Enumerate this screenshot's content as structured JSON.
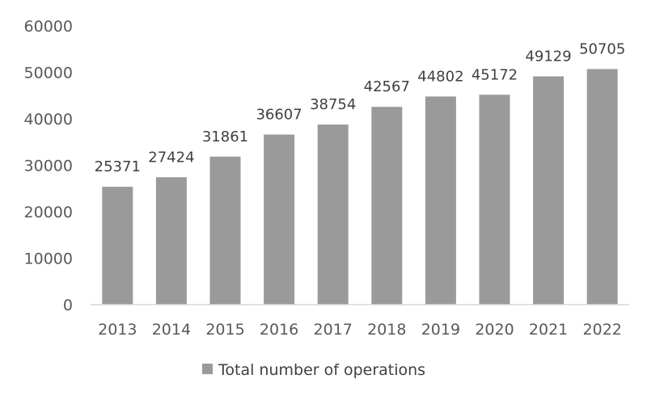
{
  "chart_data": {
    "type": "bar",
    "categories": [
      "2013",
      "2014",
      "2015",
      "2016",
      "2017",
      "2018",
      "2019",
      "2020",
      "2021",
      "2022"
    ],
    "series": [
      {
        "name": "Total number of operations",
        "values": [
          25371,
          27424,
          31861,
          36607,
          38754,
          42567,
          44802,
          45172,
          49129,
          50705
        ]
      }
    ],
    "ylim": [
      0,
      60000
    ],
    "yticks": [
      0,
      10000,
      20000,
      30000,
      40000,
      50000,
      60000
    ],
    "grid": false,
    "legend_position": "bottom",
    "data_labels": true,
    "bar_color": "#9a9a9a"
  }
}
